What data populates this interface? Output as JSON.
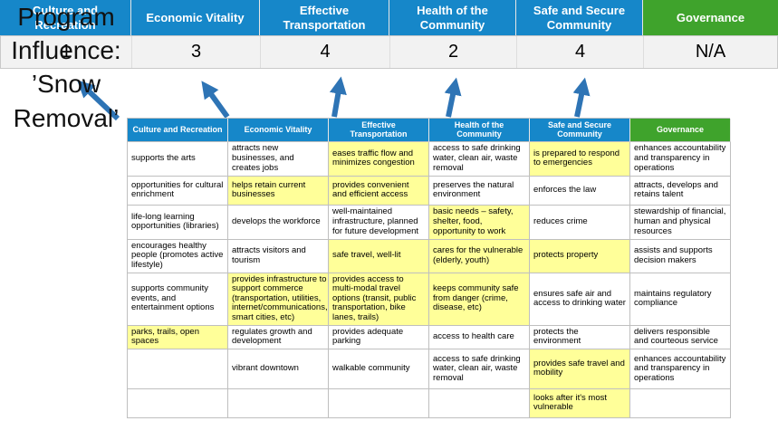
{
  "title": "Program Influence: ’Snow Removal’",
  "pillars": [
    {
      "label": "Culture and Recreation",
      "score": "1"
    },
    {
      "label": "Economic Vitality",
      "score": "3"
    },
    {
      "label": "Effective Transportation",
      "score": "4"
    },
    {
      "label": "Health of the Community",
      "score": "2"
    },
    {
      "label": "Safe and Secure Community",
      "score": "4"
    },
    {
      "label": "Governance",
      "score": "N/A"
    }
  ],
  "icons": [
    {
      "name": "up-arrow-icon",
      "meaning": "table column contributes to pillar score"
    }
  ],
  "colors": {
    "pillar_blue": "#1687c9",
    "governance_green": "#3fa32c",
    "highlight_yellow": "#ffff99",
    "arrow_blue": "#2e74b5"
  },
  "table": {
    "headers": [
      "Culture and Recreation",
      "Economic Vitality",
      "Effective Transportation",
      "Health of the Community",
      "Safe and Secure Community",
      "Governance"
    ],
    "rows": [
      [
        {
          "text": "supports the arts",
          "hl": false
        },
        {
          "text": "attracts new businesses, and creates jobs",
          "hl": false
        },
        {
          "text": "eases traffic flow and minimizes congestion",
          "hl": true
        },
        {
          "text": "access to safe drinking water, clean air, waste removal",
          "hl": false
        },
        {
          "text": "is prepared to respond to emergencies",
          "hl": true
        },
        {
          "text": "enhances accountability and transparency in operations",
          "hl": false
        }
      ],
      [
        {
          "text": "opportunities for cultural enrichment",
          "hl": false
        },
        {
          "text": "helps retain current businesses",
          "hl": true
        },
        {
          "text": "provides convenient and efficient access",
          "hl": true
        },
        {
          "text": "preserves the natural environment",
          "hl": false
        },
        {
          "text": "enforces the law",
          "hl": false
        },
        {
          "text": "attracts, develops and retains talent",
          "hl": false
        }
      ],
      [
        {
          "text": "life-long learning opportunities (libraries)",
          "hl": false
        },
        {
          "text": "develops the workforce",
          "hl": false
        },
        {
          "text": "well-maintained infrastructure, planned for future development",
          "hl": false
        },
        {
          "text": "basic needs – safety, shelter, food, opportunity to work",
          "hl": true
        },
        {
          "text": "reduces crime",
          "hl": false
        },
        {
          "text": "stewardship of financial, human and physical resources",
          "hl": false
        }
      ],
      [
        {
          "text": "encourages healthy people (promotes active lifestyle)",
          "hl": false
        },
        {
          "text": "attracts visitors and tourism",
          "hl": false
        },
        {
          "text": "safe travel, well-lit",
          "hl": true
        },
        {
          "text": "cares for the vulnerable (elderly, youth)",
          "hl": true
        },
        {
          "text": "protects property",
          "hl": true
        },
        {
          "text": "assists and supports decision makers",
          "hl": false
        }
      ],
      [
        {
          "text": "supports community events, and entertainment options",
          "hl": false
        },
        {
          "text": "provides infrastructure to support commerce (transportation, utilities, internet/communications, smart cities, etc)",
          "hl": true
        },
        {
          "text": "provides access to multi-modal travel options (transit, public transportation, bike lanes, trails)",
          "hl": true
        },
        {
          "text": "keeps community safe from danger (crime, disease, etc)",
          "hl": true
        },
        {
          "text": "ensures safe air and access to drinking water",
          "hl": false
        },
        {
          "text": "maintains regulatory compliance",
          "hl": false
        }
      ],
      [
        {
          "text": "parks, trails, open spaces",
          "hl": true
        },
        {
          "text": "regulates growth and development",
          "hl": false
        },
        {
          "text": "provides adequate parking",
          "hl": false
        },
        {
          "text": "access to health care",
          "hl": false
        },
        {
          "text": "protects the environment",
          "hl": false
        },
        {
          "text": "delivers responsible and courteous service",
          "hl": false
        }
      ],
      [
        {
          "text": "",
          "hl": false
        },
        {
          "text": "vibrant downtown",
          "hl": false
        },
        {
          "text": "walkable community",
          "hl": false
        },
        {
          "text": "access to safe drinking water, clean air, waste removal",
          "hl": false
        },
        {
          "text": "provides safe travel and mobility",
          "hl": true
        },
        {
          "text": "enhances accountability and transparency in operations",
          "hl": false
        }
      ],
      [
        {
          "text": "",
          "hl": false
        },
        {
          "text": "",
          "hl": false
        },
        {
          "text": "",
          "hl": false
        },
        {
          "text": "",
          "hl": false
        },
        {
          "text": "looks after it's most vulnerable",
          "hl": true
        },
        {
          "text": "",
          "hl": false
        }
      ]
    ]
  }
}
